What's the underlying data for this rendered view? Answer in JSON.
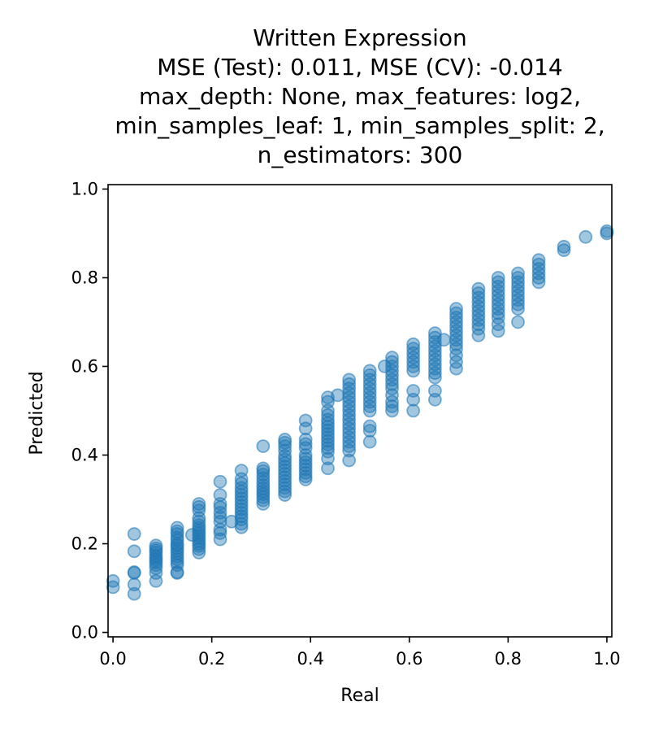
{
  "chart_data": {
    "type": "scatter",
    "title_lines": [
      "Written Expression",
      "MSE (Test): 0.011, MSE (CV): -0.014",
      "max_depth: None, max_features: log2,",
      "min_samples_leaf: 1, min_samples_split: 2,",
      "n_estimators: 300"
    ],
    "xlabel": "Real",
    "ylabel": "Predicted",
    "xlim": [
      -0.01,
      1.01
    ],
    "ylim": [
      -0.01,
      1.01
    ],
    "xticks": [
      0.0,
      0.2,
      0.4,
      0.6,
      0.8,
      1.0
    ],
    "xtick_labels": [
      "0.0",
      "0.2",
      "0.4",
      "0.6",
      "0.8",
      "1.0"
    ],
    "yticks": [
      0.0,
      0.2,
      0.4,
      0.6,
      0.8,
      1.0
    ],
    "ytick_labels": [
      "0.0",
      "0.2",
      "0.4",
      "0.6",
      "0.8",
      "1.0"
    ],
    "marker_color": "#1f77b4",
    "grid": false,
    "columns": [
      {
        "x": 0.0,
        "y": [
          0.102,
          0.116
        ]
      },
      {
        "x": 0.043,
        "y": [
          0.087,
          0.108,
          0.134,
          0.136,
          0.183,
          0.222
        ]
      },
      {
        "x": 0.087,
        "y": [
          0.116,
          0.134,
          0.145,
          0.152,
          0.158,
          0.163,
          0.168,
          0.173,
          0.18,
          0.185,
          0.19,
          0.196
        ]
      },
      {
        "x": 0.13,
        "y": [
          0.134,
          0.136,
          0.152,
          0.158,
          0.165,
          0.171,
          0.178,
          0.184,
          0.19,
          0.196,
          0.2,
          0.208,
          0.214,
          0.222,
          0.228,
          0.236
        ]
      },
      {
        "x": 0.16,
        "y": [
          0.22
        ]
      },
      {
        "x": 0.174,
        "y": [
          0.18,
          0.188,
          0.195,
          0.2,
          0.206,
          0.212,
          0.218,
          0.224,
          0.23,
          0.236,
          0.242,
          0.25,
          0.258,
          0.275,
          0.283,
          0.29
        ]
      },
      {
        "x": 0.217,
        "y": [
          0.21,
          0.224,
          0.232,
          0.25,
          0.26,
          0.27,
          0.282,
          0.29,
          0.31,
          0.34
        ]
      },
      {
        "x": 0.24,
        "y": [
          0.25
        ]
      },
      {
        "x": 0.26,
        "y": [
          0.237,
          0.245,
          0.255,
          0.262,
          0.27,
          0.278,
          0.286,
          0.294,
          0.302,
          0.31,
          0.318,
          0.326,
          0.336,
          0.346,
          0.365
        ]
      },
      {
        "x": 0.304,
        "y": [
          0.29,
          0.298,
          0.305,
          0.312,
          0.318,
          0.325,
          0.332,
          0.34,
          0.348,
          0.356,
          0.364,
          0.37,
          0.42
        ]
      },
      {
        "x": 0.348,
        "y": [
          0.31,
          0.318,
          0.326,
          0.334,
          0.342,
          0.35,
          0.358,
          0.366,
          0.374,
          0.382,
          0.39,
          0.398,
          0.41,
          0.42,
          0.428,
          0.435
        ]
      },
      {
        "x": 0.39,
        "y": [
          0.345,
          0.352,
          0.36,
          0.368,
          0.376,
          0.384,
          0.392,
          0.4,
          0.416,
          0.425,
          0.435,
          0.46,
          0.478
        ]
      },
      {
        "x": 0.435,
        "y": [
          0.37,
          0.392,
          0.408,
          0.416,
          0.424,
          0.432,
          0.44,
          0.448,
          0.456,
          0.464,
          0.472,
          0.48,
          0.49,
          0.5,
          0.52,
          0.53
        ]
      },
      {
        "x": 0.455,
        "y": [
          0.535
        ]
      },
      {
        "x": 0.478,
        "y": [
          0.388,
          0.41,
          0.42,
          0.43,
          0.44,
          0.45,
          0.46,
          0.47,
          0.48,
          0.49,
          0.5,
          0.51,
          0.52,
          0.53,
          0.54,
          0.55,
          0.56,
          0.57
        ]
      },
      {
        "x": 0.52,
        "y": [
          0.43,
          0.455,
          0.465,
          0.5,
          0.51,
          0.52,
          0.53,
          0.54,
          0.55,
          0.56,
          0.57,
          0.58,
          0.59
        ]
      },
      {
        "x": 0.55,
        "y": [
          0.6
        ]
      },
      {
        "x": 0.565,
        "y": [
          0.5,
          0.51,
          0.52,
          0.535,
          0.55,
          0.56,
          0.57,
          0.58,
          0.59,
          0.6,
          0.61,
          0.62
        ]
      },
      {
        "x": 0.608,
        "y": [
          0.5,
          0.525,
          0.545,
          0.59,
          0.6,
          0.61,
          0.62,
          0.63,
          0.64,
          0.65
        ]
      },
      {
        "x": 0.652,
        "y": [
          0.525,
          0.545,
          0.575,
          0.585,
          0.595,
          0.605,
          0.615,
          0.625,
          0.635,
          0.645,
          0.655,
          0.665,
          0.675
        ]
      },
      {
        "x": 0.67,
        "y": [
          0.66
        ]
      },
      {
        "x": 0.695,
        "y": [
          0.595,
          0.61,
          0.625,
          0.64,
          0.65,
          0.66,
          0.67,
          0.68,
          0.69,
          0.7,
          0.71,
          0.72,
          0.73
        ]
      },
      {
        "x": 0.74,
        "y": [
          0.67,
          0.685,
          0.695,
          0.705,
          0.715,
          0.725,
          0.735,
          0.745,
          0.755,
          0.765,
          0.775
        ]
      },
      {
        "x": 0.78,
        "y": [
          0.68,
          0.695,
          0.71,
          0.72,
          0.73,
          0.74,
          0.75,
          0.76,
          0.77,
          0.78,
          0.79,
          0.8
        ]
      },
      {
        "x": 0.82,
        "y": [
          0.7,
          0.73,
          0.74,
          0.75,
          0.76,
          0.77,
          0.78,
          0.79,
          0.8,
          0.81
        ]
      },
      {
        "x": 0.862,
        "y": [
          0.79,
          0.8,
          0.81,
          0.82,
          0.83,
          0.84
        ]
      },
      {
        "x": 0.913,
        "y": [
          0.862,
          0.87
        ]
      },
      {
        "x": 0.957,
        "y": [
          0.892
        ]
      },
      {
        "x": 1.0,
        "y": [
          0.9,
          0.905
        ]
      }
    ]
  }
}
